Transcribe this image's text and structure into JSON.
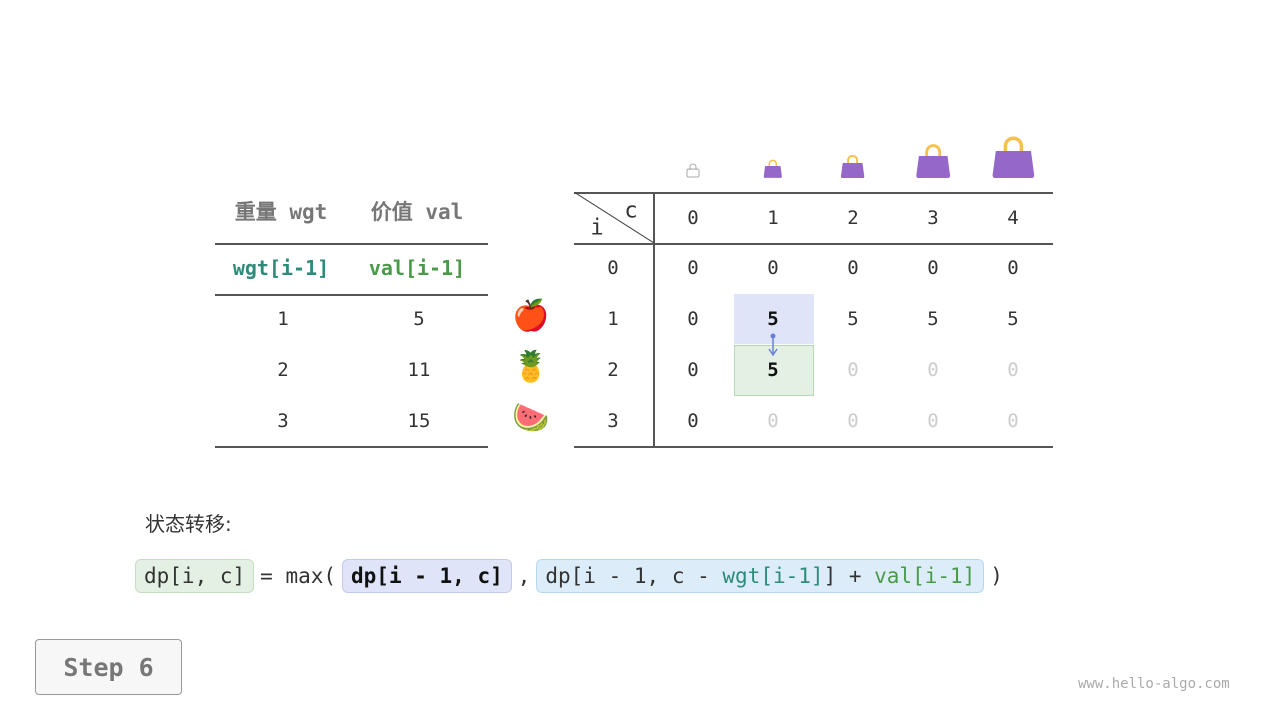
{
  "items_table": {
    "headers": [
      "重量 wgt",
      "价值 val"
    ],
    "subheaders": [
      "wgt[i-1]",
      "val[i-1]"
    ],
    "rows": [
      {
        "wgt": "1",
        "val": "5",
        "icon": "apple-icon",
        "emoji": "🍎"
      },
      {
        "wgt": "2",
        "val": "11",
        "icon": "pineapple-icon",
        "emoji": "🍍"
      },
      {
        "wgt": "3",
        "val": "15",
        "icon": "watermelon-icon",
        "emoji": "🍉"
      }
    ]
  },
  "dp_table": {
    "corner_c": "c",
    "corner_i": "i",
    "col_headers": [
      "0",
      "1",
      "2",
      "3",
      "4"
    ],
    "row_headers": [
      "0",
      "1",
      "2",
      "3"
    ],
    "cells": [
      [
        "0",
        "0",
        "0",
        "0",
        "0"
      ],
      [
        "0",
        "5",
        "5",
        "5",
        "5"
      ],
      [
        "0",
        "5",
        "0",
        "0",
        "0"
      ],
      [
        "0",
        "0",
        "0",
        "0",
        "0"
      ]
    ],
    "computed_rows_through": {
      "row": 2,
      "col": 1
    },
    "highlight_source": {
      "row": 1,
      "col": 1,
      "color": "#e0e4f8"
    },
    "highlight_target": {
      "row": 2,
      "col": 1,
      "color": "#e3f0e3"
    }
  },
  "formula": {
    "label": "状态转移:",
    "lhs": "dp[i, c]",
    "eq": "= max(",
    "opt1": "dp[i - 1, c]",
    "comma": ",",
    "opt2_a": "dp[i - 1, c - ",
    "opt2_wgt": "wgt[i-1]",
    "opt2_b": "] + ",
    "opt2_val": "val[i-1]",
    "close": ")"
  },
  "step_button": "Step 6",
  "watermark": "www.hello-algo.com",
  "colors": {
    "teal": "#2e8b7a",
    "green": "#4a9a4a",
    "bag": "#9467c9",
    "handle": "#f6c04e"
  }
}
